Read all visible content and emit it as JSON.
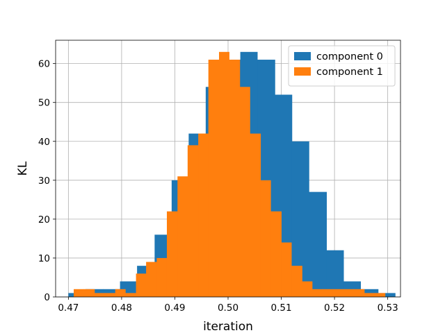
{
  "chart_data": {
    "type": "bar",
    "title": "",
    "xlabel": "iteration",
    "ylabel": "KL",
    "xlim": [
      0.4676,
      0.5324
    ],
    "ylim": [
      0,
      66
    ],
    "grid": true,
    "legend_position": "top-right",
    "x_ticks": [
      {
        "value": 0.47,
        "label": "0.47"
      },
      {
        "value": 0.48,
        "label": "0.48"
      },
      {
        "value": 0.49,
        "label": "0.49"
      },
      {
        "value": 0.5,
        "label": "0.50"
      },
      {
        "value": 0.51,
        "label": "0.51"
      },
      {
        "value": 0.52,
        "label": "0.52"
      },
      {
        "value": 0.53,
        "label": "0.53"
      }
    ],
    "y_ticks": [
      {
        "value": 0,
        "label": "0"
      },
      {
        "value": 10,
        "label": "10"
      },
      {
        "value": 20,
        "label": "20"
      },
      {
        "value": 30,
        "label": "30"
      },
      {
        "value": 40,
        "label": "40"
      },
      {
        "value": 50,
        "label": "50"
      },
      {
        "value": 60,
        "label": "60"
      }
    ],
    "series": [
      {
        "name": "component 0",
        "color": "#1f77b4",
        "bin_edges": [
          0.47,
          0.4732,
          0.4765,
          0.4797,
          0.4829,
          0.4862,
          0.4894,
          0.4926,
          0.4958,
          0.4991,
          0.5023,
          0.5055,
          0.5088,
          0.512,
          0.5152,
          0.5185,
          0.5217,
          0.5249,
          0.5282,
          0.5314
        ],
        "counts": [
          1,
          2,
          2,
          4,
          8,
          16,
          30,
          42,
          54,
          61,
          63,
          61,
          52,
          40,
          27,
          12,
          4,
          2,
          1
        ]
      },
      {
        "name": "component 1",
        "color": "#ff7f0e",
        "bin_edges": [
          0.471,
          0.4729,
          0.4749,
          0.4768,
          0.4788,
          0.4807,
          0.4827,
          0.4846,
          0.4866,
          0.4885,
          0.4905,
          0.4924,
          0.4944,
          0.4963,
          0.4983,
          0.5002,
          0.5022,
          0.5041,
          0.5061,
          0.508,
          0.51,
          0.5119,
          0.5139,
          0.5158,
          0.5178,
          0.5197,
          0.5217,
          0.5236,
          0.5256,
          0.5275,
          0.5295
        ],
        "counts": [
          2,
          2,
          1,
          1,
          2,
          1,
          6,
          9,
          10,
          22,
          31,
          39,
          42,
          61,
          63,
          61,
          54,
          42,
          30,
          22,
          14,
          8,
          4,
          2,
          2,
          2,
          2,
          2,
          1,
          1
        ]
      }
    ]
  }
}
